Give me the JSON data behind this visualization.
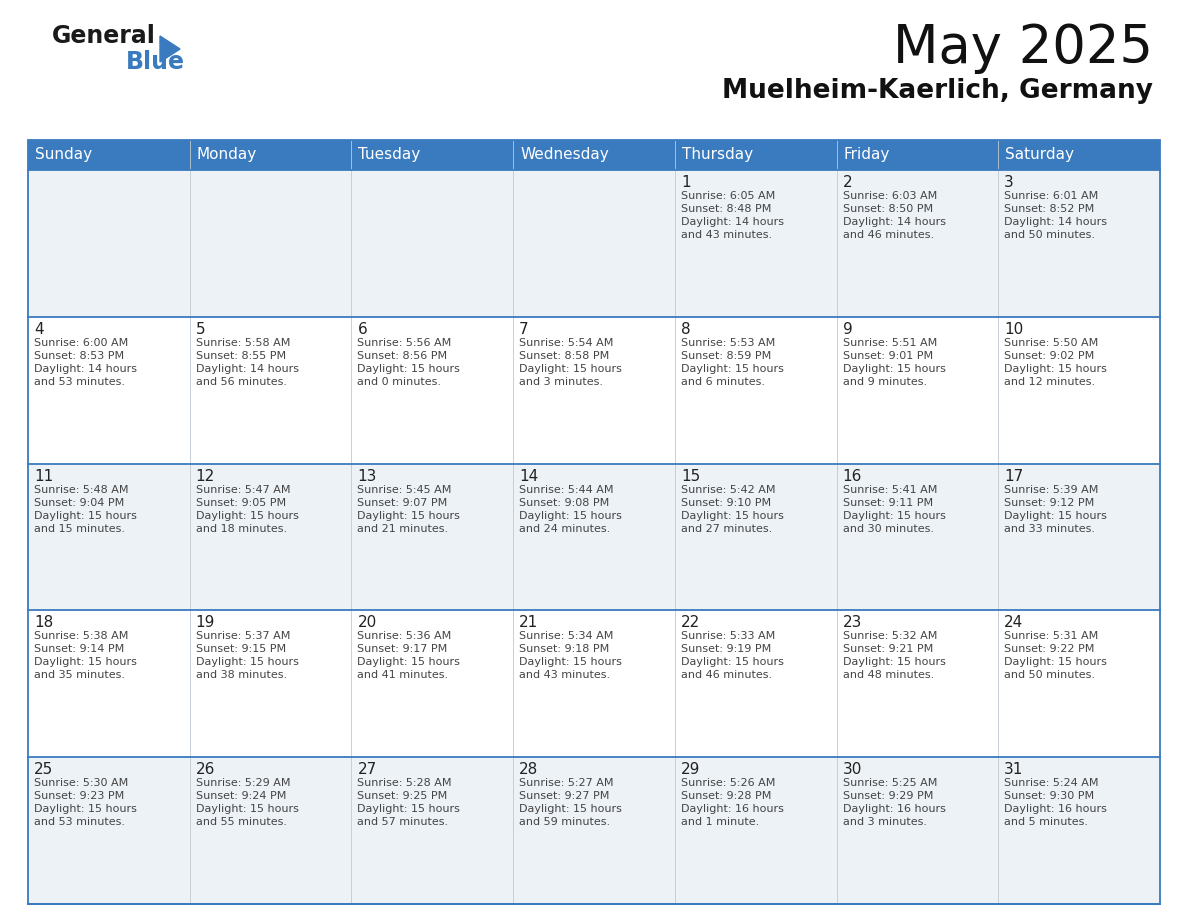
{
  "title": "May 2025",
  "subtitle": "Muelheim-Kaerlich, Germany",
  "header_bg": "#3a7abf",
  "header_text": "#ffffff",
  "day_names": [
    "Sunday",
    "Monday",
    "Tuesday",
    "Wednesday",
    "Thursday",
    "Friday",
    "Saturday"
  ],
  "row_bg_odd": "#edf2f7",
  "row_bg_even": "#ffffff",
  "cell_border_color": "#3a7abf",
  "cell_divider_color": "#c0c8d0",
  "day_number_color": "#222222",
  "info_text_color": "#444444",
  "title_color": "#111111",
  "subtitle_color": "#111111",
  "calendar": [
    [
      {
        "day": "",
        "info": ""
      },
      {
        "day": "",
        "info": ""
      },
      {
        "day": "",
        "info": ""
      },
      {
        "day": "",
        "info": ""
      },
      {
        "day": "1",
        "info": "Sunrise: 6:05 AM\nSunset: 8:48 PM\nDaylight: 14 hours\nand 43 minutes."
      },
      {
        "day": "2",
        "info": "Sunrise: 6:03 AM\nSunset: 8:50 PM\nDaylight: 14 hours\nand 46 minutes."
      },
      {
        "day": "3",
        "info": "Sunrise: 6:01 AM\nSunset: 8:52 PM\nDaylight: 14 hours\nand 50 minutes."
      }
    ],
    [
      {
        "day": "4",
        "info": "Sunrise: 6:00 AM\nSunset: 8:53 PM\nDaylight: 14 hours\nand 53 minutes."
      },
      {
        "day": "5",
        "info": "Sunrise: 5:58 AM\nSunset: 8:55 PM\nDaylight: 14 hours\nand 56 minutes."
      },
      {
        "day": "6",
        "info": "Sunrise: 5:56 AM\nSunset: 8:56 PM\nDaylight: 15 hours\nand 0 minutes."
      },
      {
        "day": "7",
        "info": "Sunrise: 5:54 AM\nSunset: 8:58 PM\nDaylight: 15 hours\nand 3 minutes."
      },
      {
        "day": "8",
        "info": "Sunrise: 5:53 AM\nSunset: 8:59 PM\nDaylight: 15 hours\nand 6 minutes."
      },
      {
        "day": "9",
        "info": "Sunrise: 5:51 AM\nSunset: 9:01 PM\nDaylight: 15 hours\nand 9 minutes."
      },
      {
        "day": "10",
        "info": "Sunrise: 5:50 AM\nSunset: 9:02 PM\nDaylight: 15 hours\nand 12 minutes."
      }
    ],
    [
      {
        "day": "11",
        "info": "Sunrise: 5:48 AM\nSunset: 9:04 PM\nDaylight: 15 hours\nand 15 minutes."
      },
      {
        "day": "12",
        "info": "Sunrise: 5:47 AM\nSunset: 9:05 PM\nDaylight: 15 hours\nand 18 minutes."
      },
      {
        "day": "13",
        "info": "Sunrise: 5:45 AM\nSunset: 9:07 PM\nDaylight: 15 hours\nand 21 minutes."
      },
      {
        "day": "14",
        "info": "Sunrise: 5:44 AM\nSunset: 9:08 PM\nDaylight: 15 hours\nand 24 minutes."
      },
      {
        "day": "15",
        "info": "Sunrise: 5:42 AM\nSunset: 9:10 PM\nDaylight: 15 hours\nand 27 minutes."
      },
      {
        "day": "16",
        "info": "Sunrise: 5:41 AM\nSunset: 9:11 PM\nDaylight: 15 hours\nand 30 minutes."
      },
      {
        "day": "17",
        "info": "Sunrise: 5:39 AM\nSunset: 9:12 PM\nDaylight: 15 hours\nand 33 minutes."
      }
    ],
    [
      {
        "day": "18",
        "info": "Sunrise: 5:38 AM\nSunset: 9:14 PM\nDaylight: 15 hours\nand 35 minutes."
      },
      {
        "day": "19",
        "info": "Sunrise: 5:37 AM\nSunset: 9:15 PM\nDaylight: 15 hours\nand 38 minutes."
      },
      {
        "day": "20",
        "info": "Sunrise: 5:36 AM\nSunset: 9:17 PM\nDaylight: 15 hours\nand 41 minutes."
      },
      {
        "day": "21",
        "info": "Sunrise: 5:34 AM\nSunset: 9:18 PM\nDaylight: 15 hours\nand 43 minutes."
      },
      {
        "day": "22",
        "info": "Sunrise: 5:33 AM\nSunset: 9:19 PM\nDaylight: 15 hours\nand 46 minutes."
      },
      {
        "day": "23",
        "info": "Sunrise: 5:32 AM\nSunset: 9:21 PM\nDaylight: 15 hours\nand 48 minutes."
      },
      {
        "day": "24",
        "info": "Sunrise: 5:31 AM\nSunset: 9:22 PM\nDaylight: 15 hours\nand 50 minutes."
      }
    ],
    [
      {
        "day": "25",
        "info": "Sunrise: 5:30 AM\nSunset: 9:23 PM\nDaylight: 15 hours\nand 53 minutes."
      },
      {
        "day": "26",
        "info": "Sunrise: 5:29 AM\nSunset: 9:24 PM\nDaylight: 15 hours\nand 55 minutes."
      },
      {
        "day": "27",
        "info": "Sunrise: 5:28 AM\nSunset: 9:25 PM\nDaylight: 15 hours\nand 57 minutes."
      },
      {
        "day": "28",
        "info": "Sunrise: 5:27 AM\nSunset: 9:27 PM\nDaylight: 15 hours\nand 59 minutes."
      },
      {
        "day": "29",
        "info": "Sunrise: 5:26 AM\nSunset: 9:28 PM\nDaylight: 16 hours\nand 1 minute."
      },
      {
        "day": "30",
        "info": "Sunrise: 5:25 AM\nSunset: 9:29 PM\nDaylight: 16 hours\nand 3 minutes."
      },
      {
        "day": "31",
        "info": "Sunrise: 5:24 AM\nSunset: 9:30 PM\nDaylight: 16 hours\nand 5 minutes."
      }
    ]
  ],
  "logo_text_general": "General",
  "logo_text_blue": "Blue",
  "logo_color_general": "#1a1a1a",
  "logo_color_blue": "#3a7abf",
  "logo_triangle_color": "#3a7abf",
  "fig_width": 11.88,
  "fig_height": 9.18,
  "dpi": 100
}
